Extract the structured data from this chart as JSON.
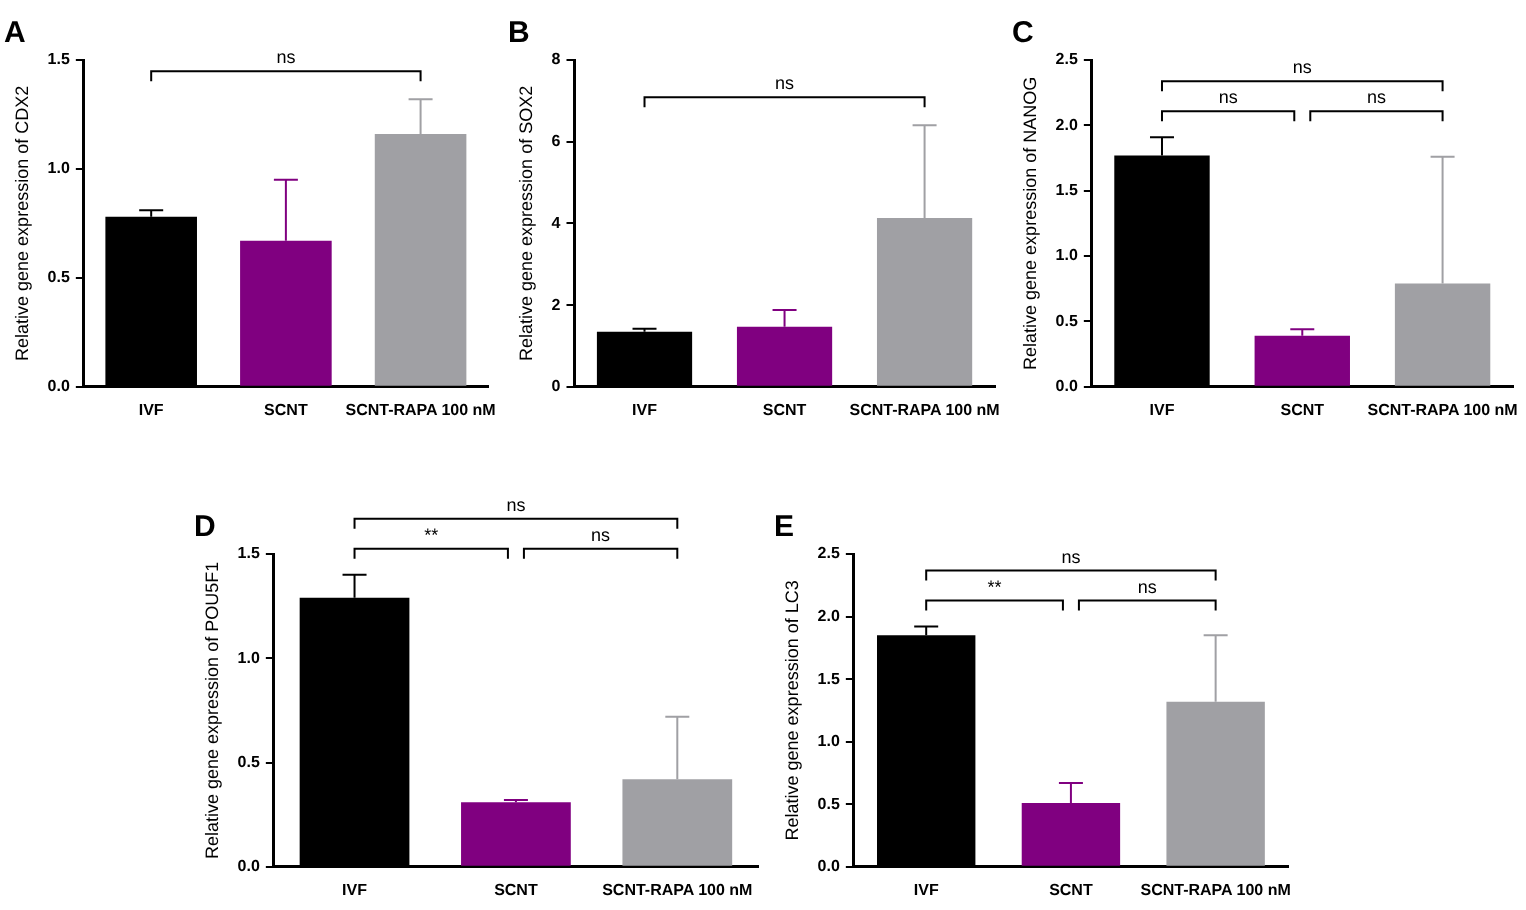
{
  "chart_data": [
    {
      "type": "bar",
      "title": "A",
      "ylabel": "Relative gene expression of CDX2",
      "categories": [
        "IVF",
        "SCNT",
        "SCNT-RAPA 100 nM"
      ],
      "values": [
        0.78,
        0.67,
        1.16
      ],
      "colors": [
        "#000000",
        "#800080",
        "#a0a0a4"
      ],
      "errors": [
        [
          0.78,
          0.81
        ],
        [
          0.67,
          0.95
        ],
        [
          1.16,
          1.32
        ]
      ],
      "ylim": [
        0,
        1.5
      ],
      "yticks": [
        {
          "value": 0,
          "label": "0.0"
        },
        {
          "value": 0.5,
          "label": "0.5"
        },
        {
          "value": 1,
          "label": "1.0"
        },
        {
          "value": 1.5,
          "label": "1.5"
        }
      ],
      "annotations": [
        "ns"
      ]
    },
    {
      "type": "bar",
      "title": "B",
      "ylabel": "Relative gene expression of SOX2",
      "categories": [
        "IVF",
        "SCNT",
        "SCNT-RAPA 100 nM"
      ],
      "values": [
        1.35,
        1.47,
        4.13
      ],
      "colors": [
        "#000000",
        "#800080",
        "#a0a0a4"
      ],
      "errors": [
        [
          1.35,
          1.42
        ],
        [
          1.47,
          1.88
        ],
        [
          4.13,
          6.4
        ]
      ],
      "ylim": [
        0,
        8
      ],
      "yticks": [
        0,
        2,
        4,
        6,
        8
      ],
      "annotations": [
        "ns"
      ]
    },
    {
      "type": "bar",
      "title": "C",
      "ylabel": "Relative gene expression of NANOG",
      "categories": [
        "IVF",
        "SCNT",
        "SCNT-RAPA 100 nM"
      ],
      "values": [
        1.77,
        0.39,
        0.79
      ],
      "colors": [
        "#000000",
        "#800080",
        "#a0a0a4"
      ],
      "errors": [
        [
          1.77,
          1.91
        ],
        [
          0.39,
          0.44
        ],
        [
          0.79,
          1.76
        ]
      ],
      "ylim": [
        0,
        2.5
      ],
      "yticks": [
        {
          "value": 0,
          "label": "0.0"
        },
        {
          "value": 0.5,
          "label": "0.5"
        },
        {
          "value": 1,
          "label": "1.0"
        },
        {
          "value": 1.5,
          "label": "1.5"
        },
        {
          "value": 2,
          "label": "2.0"
        },
        {
          "value": 2.5,
          "label": "2.5"
        }
      ],
      "annotations": [
        "ns",
        "ns",
        "ns"
      ]
    },
    {
      "type": "bar",
      "title": "D",
      "ylabel": "Relative gene expression of POU5F1",
      "categories": [
        "IVF",
        "SCNT",
        "SCNT-RAPA 100 nM"
      ],
      "values": [
        1.29,
        0.31,
        0.42
      ],
      "colors": [
        "#000000",
        "#800080",
        "#a0a0a4"
      ],
      "errors": [
        [
          1.29,
          1.4
        ],
        [
          0.31,
          0.32
        ],
        [
          0.42,
          0.72
        ]
      ],
      "ylim": [
        0,
        1.5
      ],
      "yticks": [
        {
          "value": 0,
          "label": "0.0"
        },
        {
          "value": 0.5,
          "label": "0.5"
        },
        {
          "value": 1,
          "label": "1.0"
        },
        {
          "value": 1.5,
          "label": "1.5"
        }
      ],
      "annotations": [
        "ns",
        "**",
        "ns"
      ]
    },
    {
      "type": "bar",
      "title": "E",
      "ylabel": "Relative gene expression of LC3",
      "categories": [
        "IVF",
        "SCNT",
        "SCNT-RAPA 100 nM"
      ],
      "values": [
        1.85,
        0.51,
        1.32
      ],
      "colors": [
        "#000000",
        "#800080",
        "#a0a0a4"
      ],
      "errors": [
        [
          1.85,
          1.92
        ],
        [
          0.51,
          0.67
        ],
        [
          1.32,
          1.85
        ]
      ],
      "ylim": [
        0,
        2.5
      ],
      "yticks": [
        {
          "value": 0,
          "label": "0.0"
        },
        {
          "value": 0.5,
          "label": "0.5"
        },
        {
          "value": 1,
          "label": "1.0"
        },
        {
          "value": 1.5,
          "label": "1.5"
        },
        {
          "value": 2,
          "label": "2.0"
        },
        {
          "value": 2.5,
          "label": "2.5"
        }
      ],
      "annotations": [
        "ns",
        "**",
        "ns"
      ]
    }
  ]
}
